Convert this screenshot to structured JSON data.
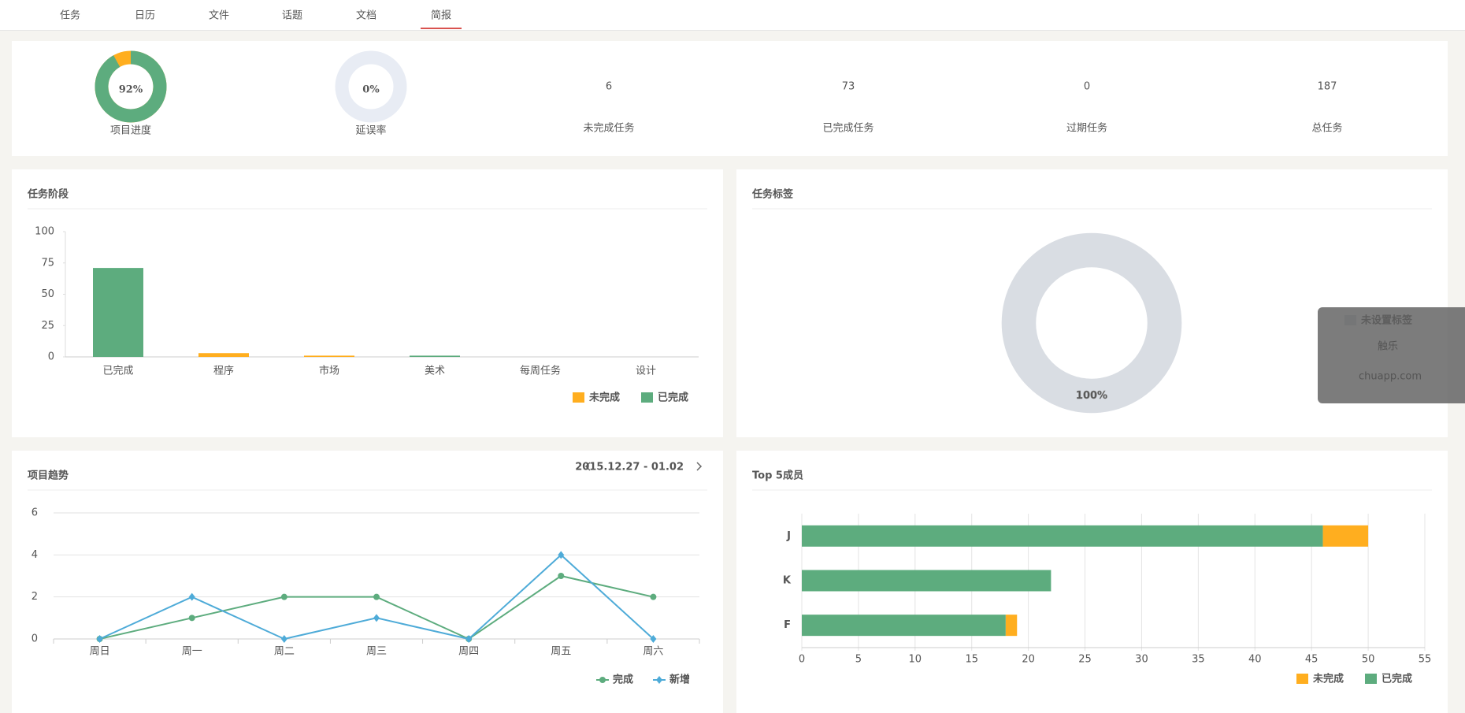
{
  "nav": {
    "tabs": [
      "任务",
      "日历",
      "文件",
      "话题",
      "文档",
      "简报"
    ],
    "active": 5
  },
  "stats": [
    {
      "type": "donut",
      "value": 92,
      "value_label": "92%",
      "label": "项目进度",
      "color": "#5dac7e",
      "rest_color": "#ffae1f"
    },
    {
      "type": "donut",
      "value": 0,
      "value_label": "0%",
      "label": "延误率",
      "color": "#d9534f",
      "rest_color": "#e8ecf4"
    },
    {
      "type": "number",
      "value": 6,
      "label": "未完成任务",
      "color": "#ffae1f"
    },
    {
      "type": "number",
      "value": 73,
      "label": "已完成任务",
      "color": "#5dac7e"
    },
    {
      "type": "number",
      "value": 0,
      "label": "过期任务",
      "color": "#d9534f"
    },
    {
      "type": "number",
      "value": 187,
      "label": "总任务",
      "color": "#333333"
    }
  ],
  "chart_data": [
    {
      "type": "bar",
      "title": "任务阶段",
      "categories": [
        "已完成",
        "程序",
        "市场",
        "美术",
        "每周任务",
        "设计"
      ],
      "series": [
        {
          "name": "未完成",
          "color": "#ffae1f",
          "values": [
            0,
            3,
            1,
            0,
            0,
            0
          ]
        },
        {
          "name": "已完成",
          "color": "#5dac7e",
          "values": [
            71,
            0,
            0,
            1,
            0,
            0
          ]
        }
      ],
      "ylim": [
        0,
        100
      ],
      "yticks": [
        0,
        25,
        50,
        75,
        100
      ],
      "grid": false,
      "legend": "bottom-right"
    },
    {
      "type": "pie",
      "title": "任务标签",
      "categories": [
        "未设置标签"
      ],
      "values": [
        100
      ],
      "value_labels": [
        "100%"
      ],
      "colors": [
        "#d9dde3"
      ],
      "legend": "top-right"
    },
    {
      "type": "line",
      "title": "项目趋势",
      "subtitle": "2015.12.27 - 01.02",
      "categories": [
        "周日",
        "周一",
        "周二",
        "周三",
        "周四",
        "周五",
        "周六"
      ],
      "series": [
        {
          "name": "完成",
          "color": "#5dac7e",
          "marker": "circle",
          "values": [
            0,
            1,
            2,
            2,
            0,
            3,
            2
          ]
        },
        {
          "name": "新增",
          "color": "#4eabd8",
          "marker": "diamond",
          "values": [
            0,
            2,
            0,
            1,
            0,
            4,
            0
          ]
        }
      ],
      "ylim": [
        0,
        6
      ],
      "yticks": [
        0,
        2,
        4,
        6
      ],
      "grid": true,
      "legend": "bottom-right"
    },
    {
      "type": "hbar",
      "title": "Top 5成员",
      "categories": [
        "J",
        "K",
        "F"
      ],
      "series": [
        {
          "name": "未完成",
          "color": "#ffae1f",
          "values": [
            4,
            0,
            1
          ]
        },
        {
          "name": "已完成",
          "color": "#5dac7e",
          "values": [
            46,
            22,
            18
          ]
        }
      ],
      "xlim": [
        0,
        55
      ],
      "xticks": [
        0,
        5,
        10,
        15,
        20,
        25,
        30,
        35,
        40,
        45,
        50,
        55
      ],
      "grid": true,
      "legend": "bottom-right"
    }
  ],
  "watermark": {
    "logo": "触乐",
    "site": "chuapp.com"
  }
}
